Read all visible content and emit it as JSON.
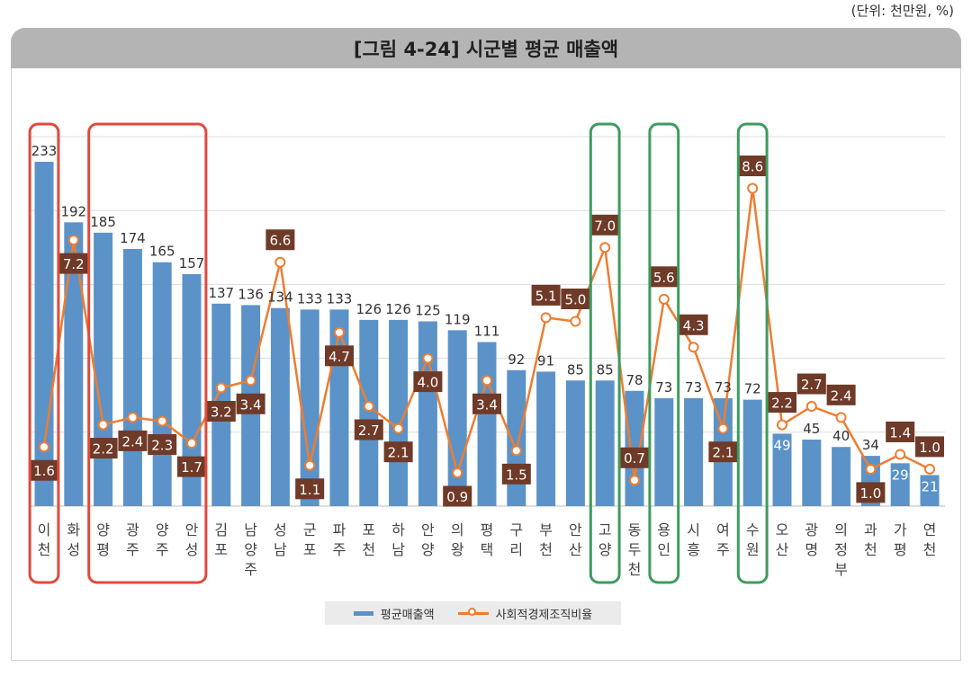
{
  "chart_data": {
    "type": "bar",
    "title": "[그림 4-24] 시군별 평균 매출액",
    "unit_note": "(단위: 천만원, %)",
    "categories": [
      "이천",
      "화성",
      "양평",
      "광주",
      "양주",
      "안성",
      "김포",
      "남양주",
      "성남",
      "군포",
      "파주",
      "포천",
      "하남",
      "안양",
      "의왕",
      "평택",
      "구리",
      "부천",
      "안산",
      "고양",
      "동두천",
      "용인",
      "시흥",
      "여주",
      "수원",
      "오산",
      "광명",
      "의정부",
      "과천",
      "가평",
      "연천"
    ],
    "series": [
      {
        "name": "평균매출액",
        "type": "bar",
        "axis": "left",
        "color": "#5b93c8",
        "values": [
          233,
          192,
          185,
          174,
          165,
          157,
          137,
          136,
          134,
          133,
          133,
          126,
          126,
          125,
          119,
          111,
          92,
          91,
          85,
          85,
          78,
          73,
          73,
          73,
          72,
          49,
          45,
          40,
          34,
          29,
          21
        ]
      },
      {
        "name": "사회적경제조직비율",
        "type": "line",
        "axis": "right",
        "color": "#ed7d31",
        "values": [
          1.6,
          7.2,
          2.2,
          2.4,
          2.3,
          1.7,
          3.2,
          3.4,
          6.6,
          1.1,
          4.7,
          2.7,
          2.1,
          4.0,
          0.9,
          3.4,
          1.5,
          5.1,
          5.0,
          7.0,
          0.7,
          5.6,
          4.3,
          2.1,
          8.6,
          2.2,
          2.7,
          2.4,
          1.0,
          1.4,
          1.0
        ],
        "labels": [
          "1.6",
          "7.2",
          "2.2",
          "2.4",
          "2.3",
          "1.7",
          "3.2",
          "3.4",
          "6.6",
          "1.1",
          "4.7",
          "2.7",
          "2.1",
          "4.0",
          "0.9",
          "3.4",
          "1.5",
          "5.1",
          "5.0",
          "7.0",
          "0.7",
          "5.6",
          "4.3",
          "2.1",
          "8.6",
          "2.2",
          "2.7",
          "2.4",
          "1.0",
          "1.4",
          "1.0"
        ]
      }
    ],
    "ylim": [
      0,
      250
    ],
    "y2lim": [
      0,
      10
    ],
    "grid": true,
    "legend": "bottom-center",
    "label_box_color": "#6f3a28",
    "highlights": [
      {
        "color": "#e04a3b",
        "category_indices": [
          0
        ]
      },
      {
        "color": "#e04a3b",
        "category_indices": [
          2,
          3,
          4,
          5
        ]
      },
      {
        "color": "#3e9b5f",
        "category_indices": [
          19
        ]
      },
      {
        "color": "#3e9b5f",
        "category_indices": [
          21
        ]
      },
      {
        "color": "#3e9b5f",
        "category_indices": [
          24
        ]
      }
    ]
  }
}
